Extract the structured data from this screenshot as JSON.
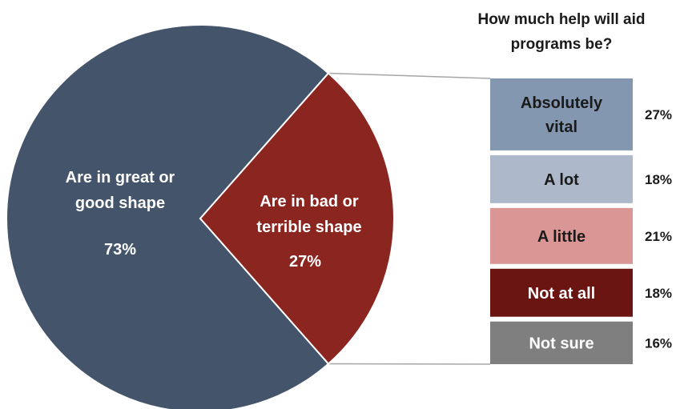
{
  "chart_data": [
    {
      "type": "pie",
      "slices": [
        {
          "label_lines": [
            "Are in great or",
            "good shape"
          ],
          "value": 73,
          "value_text": "73%",
          "color": "#44546a"
        },
        {
          "label_lines": [
            "Are in bad or",
            "terrible shape"
          ],
          "value": 27,
          "value_text": "27%",
          "color": "#8b2520"
        }
      ]
    },
    {
      "type": "bar",
      "stacked": true,
      "title_lines": [
        "How much help will aid",
        "programs be?"
      ],
      "segments": [
        {
          "label_lines": [
            "Absolutely",
            "vital"
          ],
          "value": 27,
          "value_text": "27%",
          "color": "#8497b0",
          "text_color": "#1a1a1a"
        },
        {
          "label_lines": [
            "A lot"
          ],
          "value": 18,
          "value_text": "18%",
          "color": "#adb9ca",
          "text_color": "#1a1a1a"
        },
        {
          "label_lines": [
            "A little"
          ],
          "value": 21,
          "value_text": "21%",
          "color": "#da9694",
          "text_color": "#1a1a1a"
        },
        {
          "label_lines": [
            "Not at all"
          ],
          "value": 18,
          "value_text": "18%",
          "color": "#6b1512",
          "text_color": "#ffffff"
        },
        {
          "label_lines": [
            "Not sure"
          ],
          "value": 16,
          "value_text": "16%",
          "color": "#7f7f7f",
          "text_color": "#ffffff"
        }
      ]
    }
  ]
}
